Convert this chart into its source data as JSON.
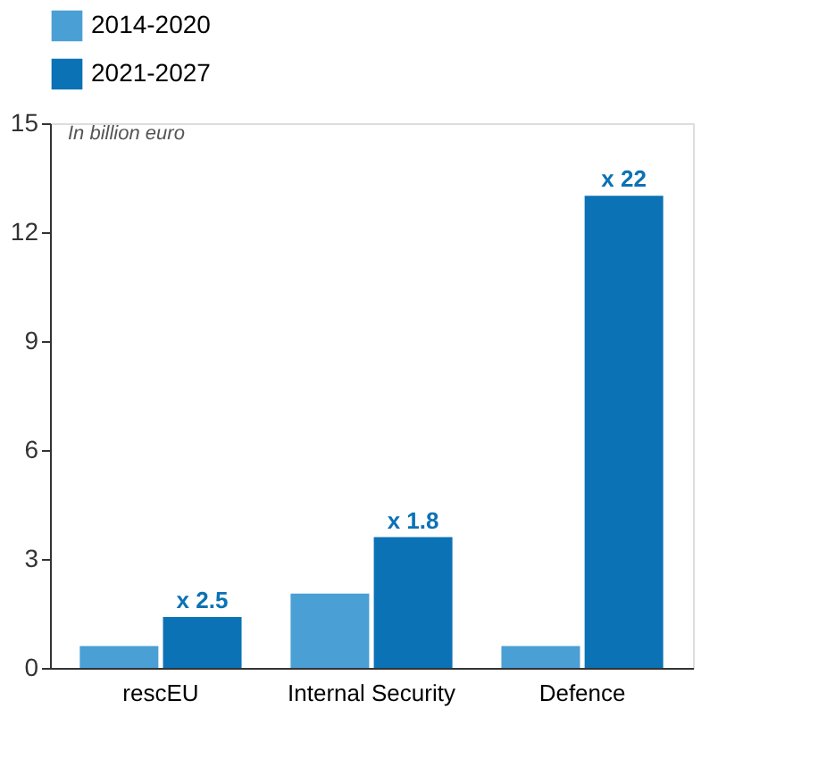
{
  "chart_data": {
    "type": "bar",
    "ylabel": "In billion euro",
    "categories": [
      "rescEU",
      "Internal Security",
      "Defence"
    ],
    "series": [
      {
        "name": "2014-2020",
        "color": "#4a9fd4",
        "values": [
          0.6,
          2.05,
          0.6
        ]
      },
      {
        "name": "2021-2027",
        "color": "#0b72b5",
        "values": [
          1.4,
          3.6,
          13.0
        ]
      }
    ],
    "ylim": [
      0,
      15
    ],
    "yticks": [
      0,
      3,
      6,
      9,
      12,
      15
    ],
    "grid": false,
    "legend": "top left",
    "annotations": [
      {
        "text": "x 2.5",
        "x": "rescEU",
        "y": 1.4
      },
      {
        "text": "x 1.8",
        "x": "Internal Security",
        "y": 3.6
      },
      {
        "text": "x 22",
        "x": "Defence",
        "y": 13.0
      }
    ]
  }
}
